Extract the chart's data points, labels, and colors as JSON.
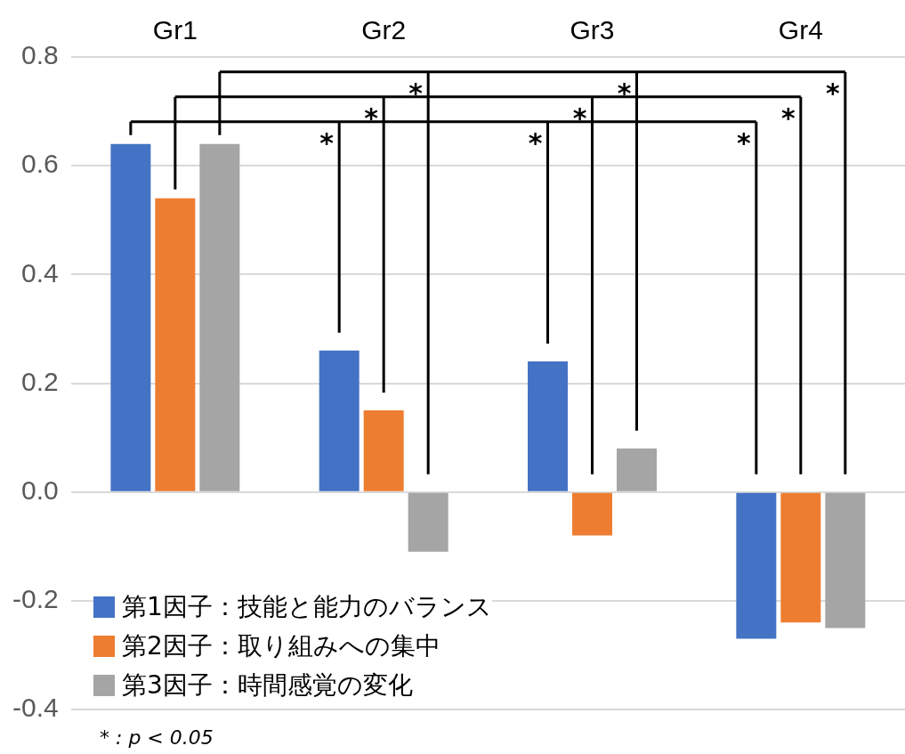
{
  "chart_data": {
    "type": "bar",
    "categories": [
      "Gr1",
      "Gr2",
      "Gr3",
      "Gr4"
    ],
    "series": [
      {
        "name": "第1因子：技能と能力のバランス",
        "color": "#4472c4",
        "values": [
          0.64,
          0.26,
          0.24,
          -0.27
        ]
      },
      {
        "name": "第2因子：取り組みへの集中",
        "color": "#ed7d31",
        "values": [
          0.54,
          0.15,
          -0.08,
          -0.24
        ]
      },
      {
        "name": "第3因子：時間感覚の変化",
        "color": "#a5a5a5",
        "values": [
          0.64,
          -0.11,
          0.08,
          -0.25
        ]
      }
    ],
    "ylim": [
      -0.4,
      0.8
    ],
    "yticks": [
      {
        "value": -0.4,
        "label": "-0.4"
      },
      {
        "value": -0.2,
        "label": "-0.2"
      },
      {
        "value": 0,
        "label": "0.0"
      },
      {
        "value": 0.2,
        "label": "0.2"
      },
      {
        "value": 0.4,
        "label": "0.4"
      },
      {
        "value": 0.6,
        "label": "0.6"
      },
      {
        "value": 0.8,
        "label": "0.8"
      }
    ],
    "grid": "y",
    "legend": "bottom left",
    "annotations": [
      "*",
      "*",
      "*",
      "*",
      "*",
      "*",
      "*",
      "*",
      "*",
      "* : p < 0.05"
    ]
  }
}
